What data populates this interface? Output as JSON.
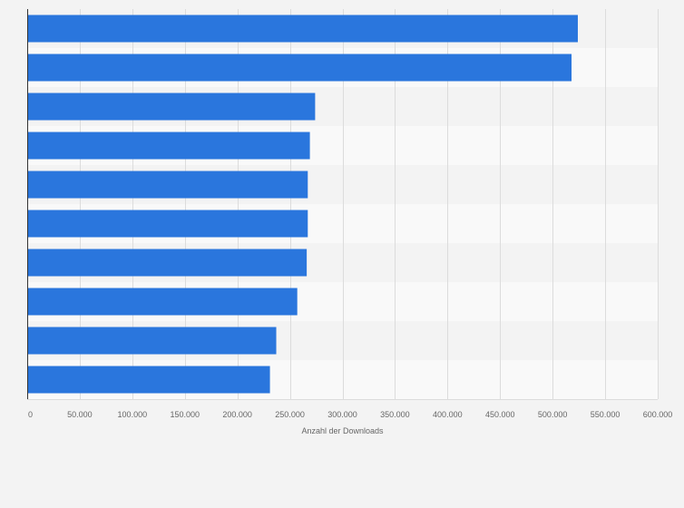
{
  "chart_data": {
    "type": "bar",
    "orientation": "horizontal",
    "categories": [
      "",
      "",
      "",
      "",
      "",
      "",
      "",
      "",
      "",
      ""
    ],
    "values": [
      524000,
      518000,
      274000,
      269000,
      267000,
      267000,
      266000,
      257000,
      237000,
      231000
    ],
    "xlabel": "Anzahl der Downloads",
    "xlim": [
      0,
      600000
    ],
    "xticks": [
      0,
      50000,
      100000,
      150000,
      200000,
      250000,
      300000,
      350000,
      400000,
      450000,
      500000,
      550000,
      600000
    ],
    "xtick_labels": [
      "0",
      "50.000",
      "100.000",
      "150.000",
      "200.000",
      "250.000",
      "300.000",
      "350.000",
      "400.000",
      "450.000",
      "500.000",
      "550.000",
      "600.000"
    ],
    "grid": "vertical",
    "colors": {
      "bar": "#2a76dd",
      "band_even": "#f9f9f9",
      "band_odd": "#f3f3f3",
      "grid": "#dcdcdc",
      "axis": "#333333",
      "text": "#666666"
    }
  }
}
